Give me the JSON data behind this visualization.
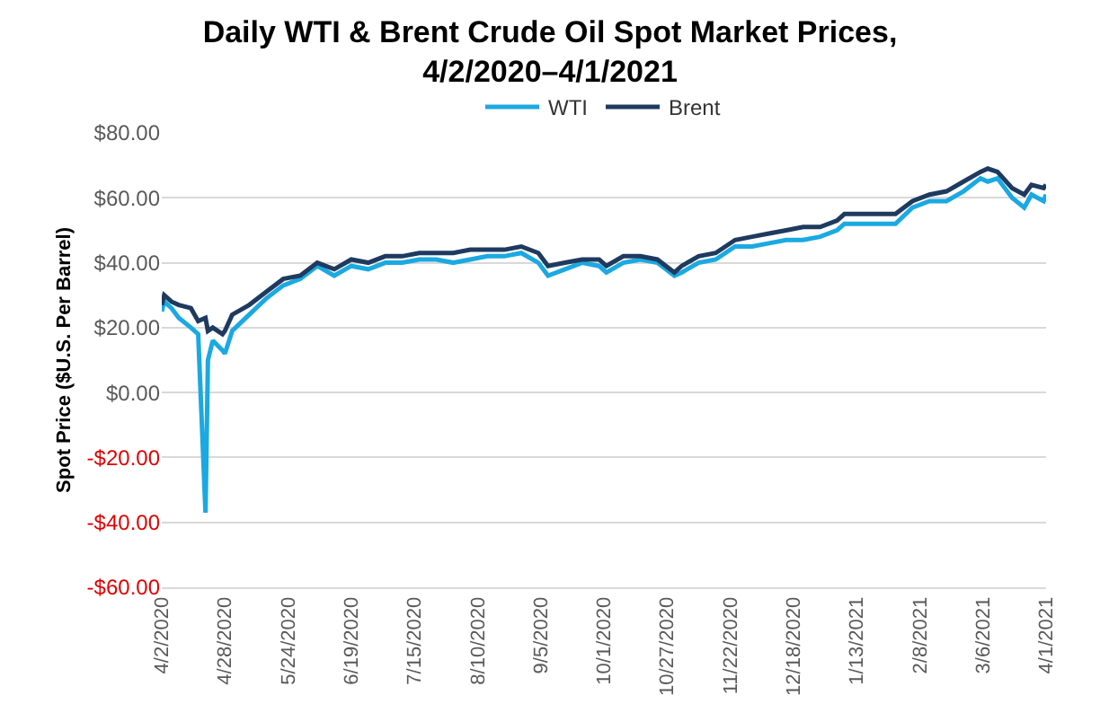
{
  "chart_data": {
    "type": "line",
    "title": "Daily WTI & Brent Crude Oil Spot Market Prices,\n4/2/2020–4/1/2021",
    "ylabel": "Spot Price ($U.S. Per Barrel)",
    "x": [
      "2020-04-02",
      "2020-04-03",
      "2020-04-06",
      "2020-04-09",
      "2020-04-14",
      "2020-04-17",
      "2020-04-20",
      "2020-04-21",
      "2020-04-23",
      "2020-04-27",
      "2020-04-28",
      "2020-05-01",
      "2020-05-08",
      "2020-05-15",
      "2020-05-22",
      "2020-05-29",
      "2020-06-05",
      "2020-06-12",
      "2020-06-19",
      "2020-06-26",
      "2020-07-03",
      "2020-07-10",
      "2020-07-17",
      "2020-07-24",
      "2020-07-31",
      "2020-08-07",
      "2020-08-14",
      "2020-08-21",
      "2020-08-28",
      "2020-09-04",
      "2020-09-08",
      "2020-09-15",
      "2020-09-22",
      "2020-09-29",
      "2020-10-02",
      "2020-10-09",
      "2020-10-16",
      "2020-10-23",
      "2020-10-30",
      "2020-11-02",
      "2020-11-09",
      "2020-11-16",
      "2020-11-24",
      "2020-12-01",
      "2020-12-08",
      "2020-12-15",
      "2020-12-22",
      "2020-12-29",
      "2021-01-05",
      "2021-01-08",
      "2021-01-15",
      "2021-01-22",
      "2021-01-29",
      "2021-02-05",
      "2021-02-12",
      "2021-02-19",
      "2021-02-26",
      "2021-03-05",
      "2021-03-08",
      "2021-03-12",
      "2021-03-18",
      "2021-03-23",
      "2021-03-26",
      "2021-03-31",
      "2021-04-01"
    ],
    "series": [
      {
        "name": "WTI",
        "color": "#1ba9e1",
        "values": [
          25,
          28,
          26,
          23,
          20,
          18,
          -37,
          10,
          16,
          13,
          12,
          19,
          24,
          29,
          33,
          35,
          39,
          36,
          39,
          38,
          40,
          40,
          41,
          41,
          40,
          41,
          42,
          42,
          43,
          40,
          36,
          38,
          40,
          39,
          37,
          40,
          41,
          40,
          36,
          37,
          40,
          41,
          45,
          45,
          46,
          47,
          47,
          48,
          50,
          52,
          52,
          52,
          52,
          57,
          59,
          59,
          62,
          66,
          65,
          66,
          60,
          57,
          61,
          59,
          61
        ]
      },
      {
        "name": "Brent",
        "color": "#1f3a5f",
        "values": [
          27,
          30,
          28,
          27,
          26,
          22,
          23,
          19,
          20,
          18,
          19,
          24,
          27,
          31,
          35,
          36,
          40,
          38,
          41,
          40,
          42,
          42,
          43,
          43,
          43,
          44,
          44,
          44,
          45,
          43,
          39,
          40,
          41,
          41,
          39,
          42,
          42,
          41,
          37,
          39,
          42,
          43,
          47,
          48,
          49,
          50,
          51,
          51,
          53,
          55,
          55,
          55,
          55,
          59,
          61,
          62,
          65,
          68,
          69,
          68,
          63,
          61,
          64,
          63,
          64
        ]
      }
    ],
    "xlim": [
      "2020-04-02",
      "2021-04-01"
    ],
    "xticks": [
      {
        "value": "2020-04-02",
        "label": "4/2/2020"
      },
      {
        "value": "2020-04-28",
        "label": "4/28/2020"
      },
      {
        "value": "2020-05-24",
        "label": "5/24/2020"
      },
      {
        "value": "2020-06-19",
        "label": "6/19/2020"
      },
      {
        "value": "2020-07-15",
        "label": "7/15/2020"
      },
      {
        "value": "2020-08-10",
        "label": "8/10/2020"
      },
      {
        "value": "2020-09-05",
        "label": "9/5/2020"
      },
      {
        "value": "2020-10-01",
        "label": "10/1/2020"
      },
      {
        "value": "2020-10-27",
        "label": "10/27/2020"
      },
      {
        "value": "2020-11-22",
        "label": "11/22/2020"
      },
      {
        "value": "2020-12-18",
        "label": "12/18/2020"
      },
      {
        "value": "2021-01-13",
        "label": "1/13/2021"
      },
      {
        "value": "2021-02-08",
        "label": "2/8/2021"
      },
      {
        "value": "2021-03-06",
        "label": "3/6/2021"
      },
      {
        "value": "2021-04-01",
        "label": "4/1/2021"
      }
    ],
    "ylim": [
      -60,
      80
    ],
    "yticks": [
      {
        "value": -60,
        "label": "-$60.00"
      },
      {
        "value": -40,
        "label": "-$40.00"
      },
      {
        "value": -20,
        "label": "-$20.00"
      },
      {
        "value": 0,
        "label": "$0.00"
      },
      {
        "value": 20,
        "label": "$20.00"
      },
      {
        "value": 40,
        "label": "$40.00"
      },
      {
        "value": 60,
        "label": "$60.00"
      },
      {
        "value": 80,
        "label": "$80.00"
      }
    ],
    "grid": "y",
    "legend": "top",
    "line_style": "solid"
  }
}
